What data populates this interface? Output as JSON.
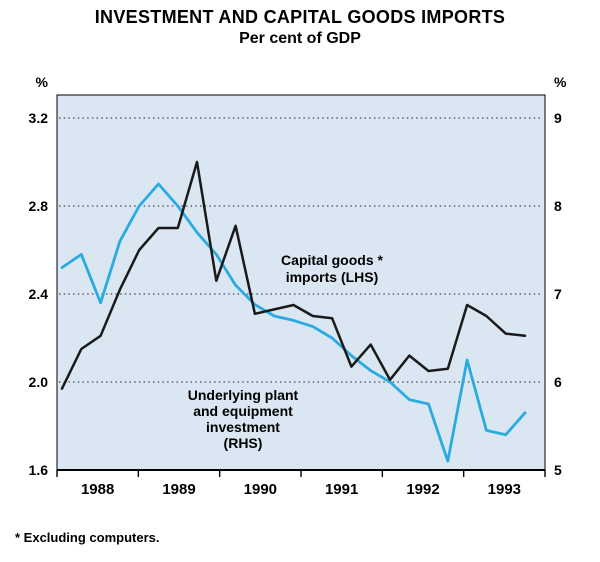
{
  "header": {
    "title": "INVESTMENT AND CAPITAL GOODS IMPORTS",
    "subtitle": "Per cent of GDP"
  },
  "footnote": "*  Excluding computers.",
  "chart_data": {
    "type": "line",
    "title": "INVESTMENT AND CAPITAL GOODS IMPORTS",
    "subtitle": "Per cent of GDP",
    "panel_background": "#dbe6f3",
    "grid": {
      "style": "dotted-horizontal",
      "color": "#222222",
      "at_left_values": [
        3.2,
        2.8,
        2.4,
        2.0
      ]
    },
    "x": {
      "year_labels": [
        "1988",
        "1989",
        "1990",
        "1991",
        "1992",
        "1993"
      ],
      "quarters": [
        "1987 Q4",
        "1988 Q1",
        "1988 Q2",
        "1988 Q3",
        "1988 Q4",
        "1989 Q1",
        "1989 Q2",
        "1989 Q3",
        "1989 Q4",
        "1990 Q1",
        "1990 Q2",
        "1990 Q3",
        "1990 Q4",
        "1991 Q1",
        "1991 Q2",
        "1991 Q3",
        "1991 Q4",
        "1992 Q1",
        "1992 Q2",
        "1992 Q3",
        "1992 Q4",
        "1993 Q1",
        "1993 Q2",
        "1993 Q3",
        "1993 Q4"
      ]
    },
    "left_axis": {
      "unit": "%",
      "tick_labels": [
        "3.2",
        "2.8",
        "2.4",
        "2.0",
        "1.6"
      ],
      "tick_values": [
        3.2,
        2.8,
        2.4,
        2.0,
        1.6
      ],
      "range": [
        1.6,
        3.3
      ]
    },
    "right_axis": {
      "unit": "%",
      "tick_labels": [
        "9",
        "8",
        "7",
        "6",
        "5"
      ],
      "tick_values": [
        9,
        8,
        7,
        6,
        5
      ],
      "range": [
        5,
        9.25
      ]
    },
    "series": [
      {
        "name": "Capital goods imports (LHS)",
        "annotation_lines": [
          "Capital goods *",
          "imports (LHS)"
        ],
        "axis": "left",
        "color": "#1a1a1a",
        "values": [
          1.97,
          2.15,
          2.21,
          2.42,
          2.6,
          2.7,
          2.7,
          3.0,
          2.46,
          2.71,
          2.31,
          2.33,
          2.35,
          2.3,
          2.29,
          2.07,
          2.17,
          2.01,
          2.12,
          2.05,
          2.06,
          2.35,
          2.3,
          2.22,
          2.21
        ]
      },
      {
        "name": "Underlying plant and equipment investment (RHS)",
        "annotation_lines": [
          "Underlying plant",
          "and equipment",
          "investment",
          "(RHS)"
        ],
        "axis": "right",
        "color": "#29abe2",
        "values": [
          7.3,
          7.45,
          6.9,
          7.6,
          8.0,
          8.25,
          8.0,
          7.7,
          7.45,
          7.1,
          6.88,
          6.75,
          6.7,
          6.63,
          6.5,
          6.3,
          6.13,
          6.0,
          5.8,
          5.75,
          5.1,
          6.25,
          5.45,
          5.4,
          5.65
        ]
      }
    ]
  }
}
